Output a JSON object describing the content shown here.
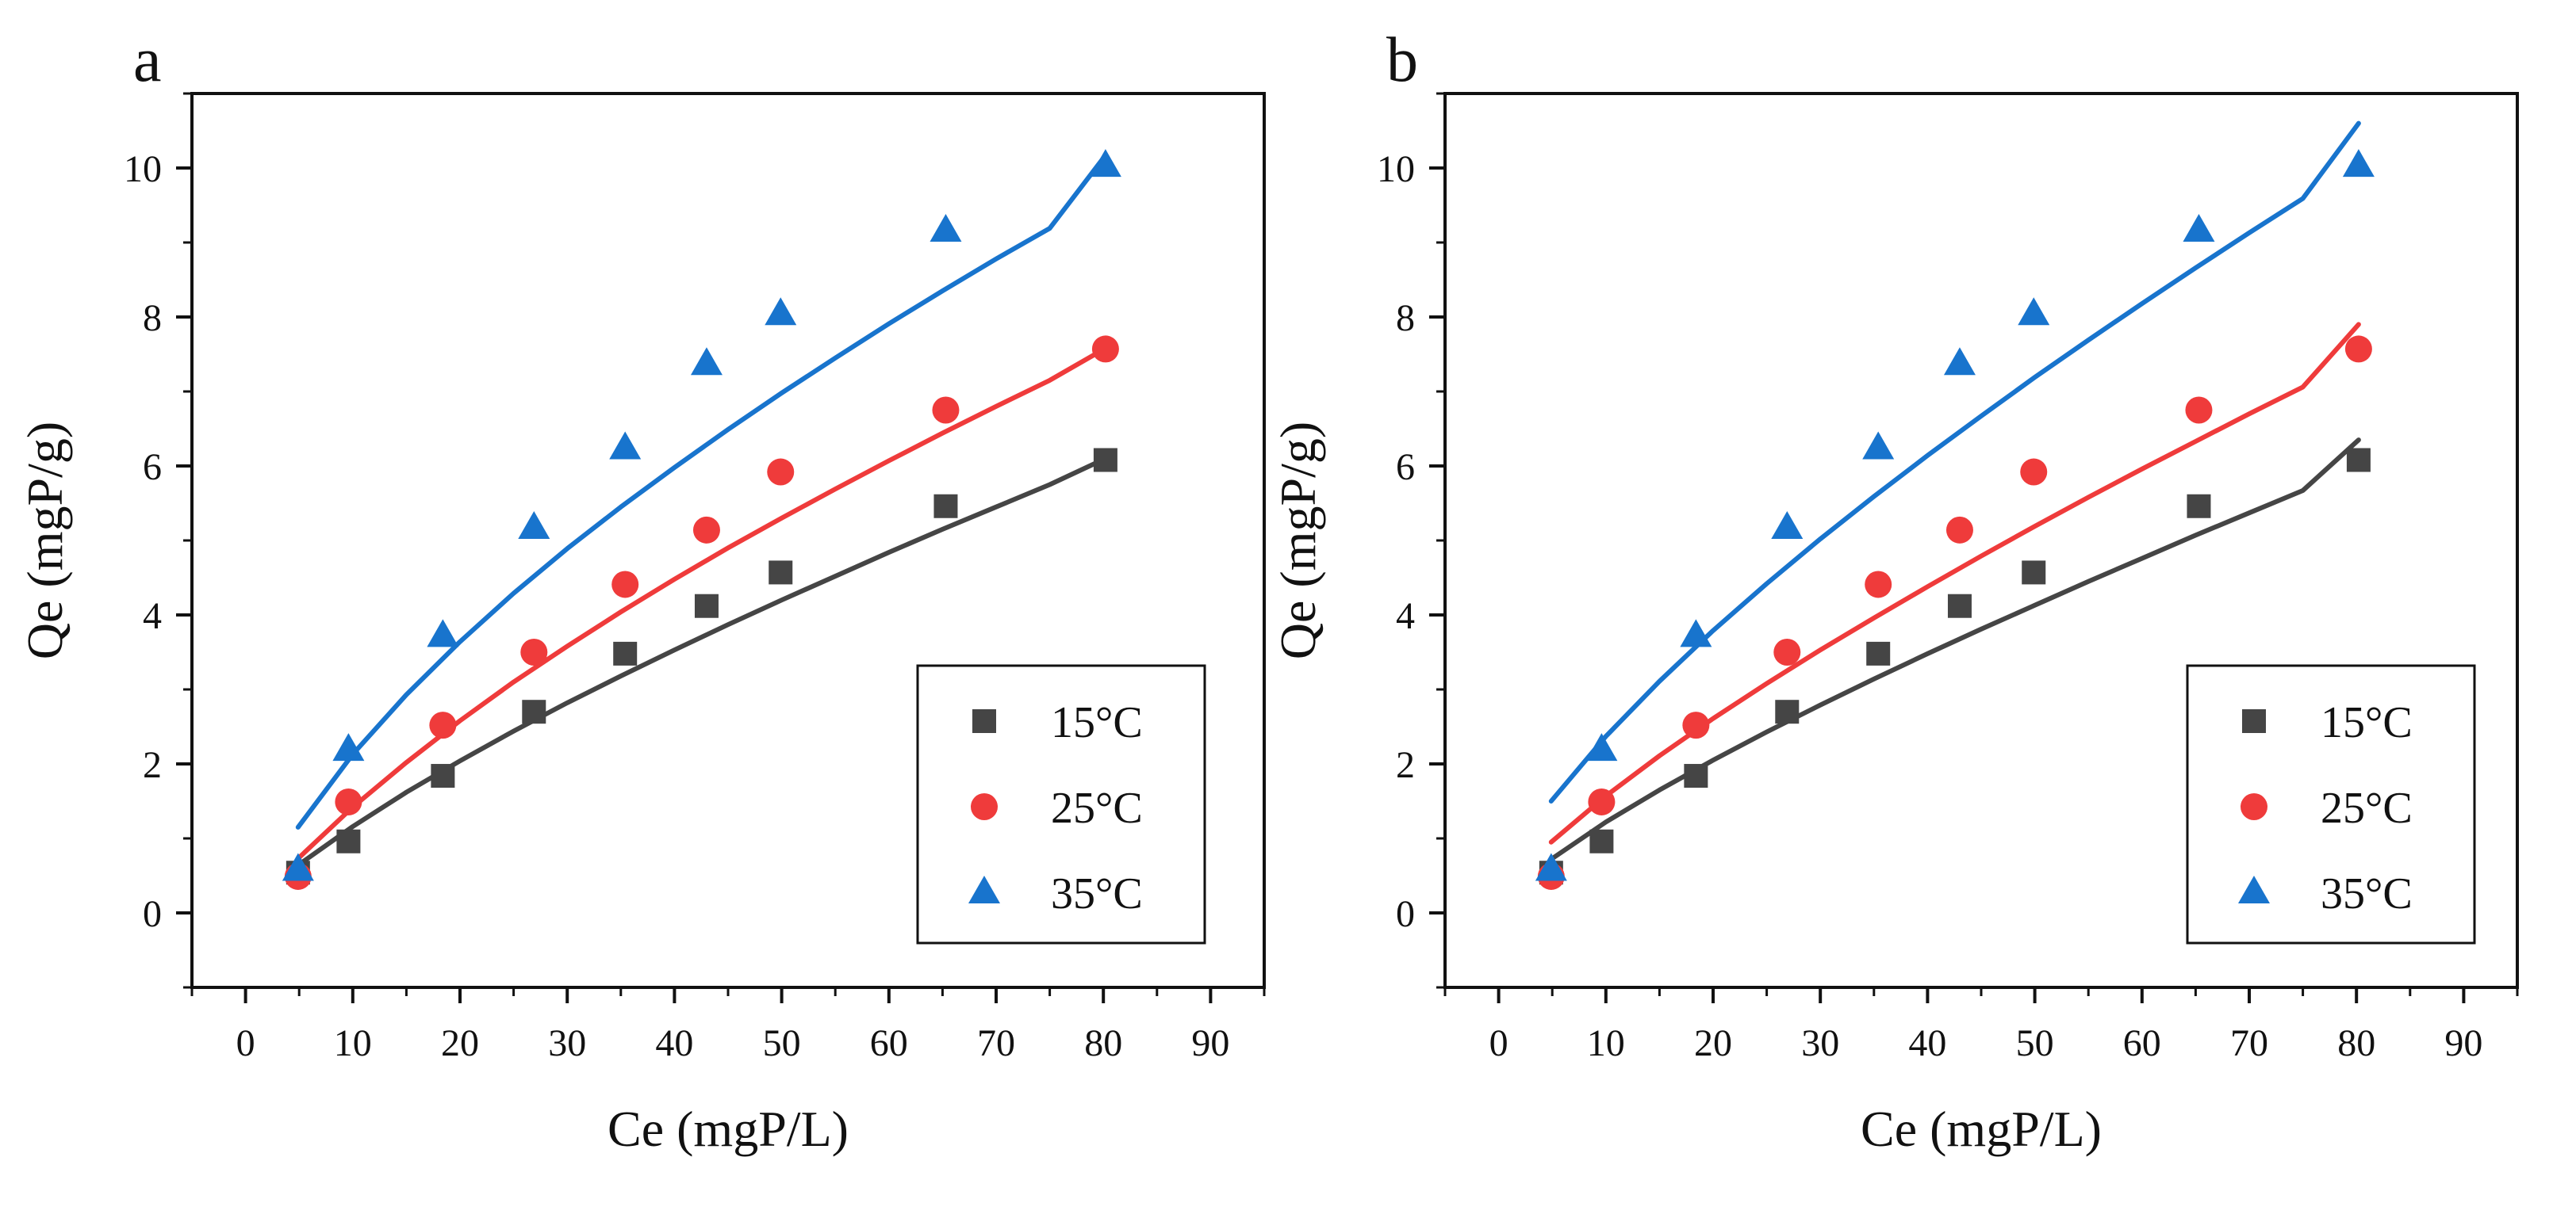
{
  "colors": {
    "15C": "#454545",
    "25C": "#ef3b3b",
    "35C": "#1874cd",
    "axis": "#111111"
  },
  "chart_data": [
    {
      "type": "scatter",
      "panel_label": "a",
      "xlabel": "Ce (mgP/L)",
      "ylabel": "Qe (mgP/g)",
      "xlim": [
        -5,
        95
      ],
      "ylim": [
        -1,
        11
      ],
      "xticks": [
        0,
        10,
        20,
        30,
        40,
        50,
        60,
        70,
        80,
        90
      ],
      "yticks": [
        0,
        2,
        4,
        6,
        8,
        10
      ],
      "legend_position": "bottom-right",
      "series": [
        {
          "name": "15°C",
          "marker": "square",
          "color": "#454545",
          "x": [
            4.9,
            9.6,
            18.4,
            26.9,
            35.4,
            43.0,
            49.9,
            65.3,
            80.2
          ],
          "y": [
            0.54,
            0.96,
            1.84,
            2.7,
            3.48,
            4.12,
            4.57,
            5.46,
            6.08
          ],
          "fit_x": [
            4.9,
            10,
            15,
            20,
            25,
            30,
            35,
            40,
            45,
            50,
            55,
            60,
            65,
            70,
            75,
            80.2
          ],
          "fit_y": [
            0.64,
            1.16,
            1.62,
            2.04,
            2.44,
            2.82,
            3.18,
            3.53,
            3.87,
            4.2,
            4.52,
            4.84,
            5.15,
            5.45,
            5.75,
            6.1
          ]
        },
        {
          "name": "25°C",
          "marker": "circle",
          "color": "#ef3b3b",
          "x": [
            4.9,
            9.6,
            18.4,
            26.9,
            35.4,
            43.0,
            49.9,
            65.3,
            80.2
          ],
          "y": [
            0.49,
            1.49,
            2.52,
            3.5,
            4.41,
            5.14,
            5.92,
            6.75,
            7.57
          ],
          "fit_x": [
            4.9,
            10,
            15,
            20,
            25,
            30,
            35,
            40,
            45,
            50,
            55,
            60,
            65,
            70,
            75,
            80.2
          ],
          "fit_y": [
            0.73,
            1.42,
            2.02,
            2.58,
            3.1,
            3.58,
            4.04,
            4.48,
            4.9,
            5.3,
            5.69,
            6.07,
            6.44,
            6.8,
            7.15,
            7.58
          ]
        },
        {
          "name": "35°C",
          "marker": "triangle",
          "color": "#1874cd",
          "x": [
            4.9,
            9.6,
            18.4,
            26.9,
            35.4,
            43.0,
            49.9,
            65.3,
            80.2
          ],
          "y": [
            0.58,
            2.19,
            3.72,
            5.17,
            6.24,
            7.37,
            8.04,
            9.16,
            10.03
          ],
          "fit_x": [
            4.9,
            10,
            15,
            20,
            25,
            30,
            35,
            40,
            45,
            50,
            55,
            60,
            65,
            70,
            75,
            80.2
          ],
          "fit_y": [
            1.15,
            2.13,
            2.93,
            3.64,
            4.29,
            4.89,
            5.45,
            5.98,
            6.49,
            6.98,
            7.45,
            7.91,
            8.35,
            8.78,
            9.19,
            10.17
          ]
        }
      ]
    },
    {
      "type": "scatter",
      "panel_label": "b",
      "xlabel": "Ce (mgP/L)",
      "ylabel": "Qe (mgP/g)",
      "xlim": [
        -5,
        95
      ],
      "ylim": [
        -1,
        11
      ],
      "xticks": [
        0,
        10,
        20,
        30,
        40,
        50,
        60,
        70,
        80,
        90
      ],
      "yticks": [
        0,
        2,
        4,
        6,
        8,
        10
      ],
      "legend_position": "bottom-right",
      "series": [
        {
          "name": "15°C",
          "marker": "square",
          "color": "#454545",
          "x": [
            4.9,
            9.6,
            18.4,
            26.9,
            35.4,
            43.0,
            49.9,
            65.3,
            80.2
          ],
          "y": [
            0.54,
            0.96,
            1.84,
            2.7,
            3.48,
            4.12,
            4.57,
            5.46,
            6.08
          ],
          "fit_x": [
            4.9,
            10,
            15,
            20,
            25,
            30,
            35,
            40,
            45,
            50,
            55,
            60,
            65,
            70,
            75,
            80.2
          ],
          "fit_y": [
            0.72,
            1.22,
            1.65,
            2.05,
            2.43,
            2.79,
            3.14,
            3.48,
            3.81,
            4.13,
            4.45,
            4.76,
            5.07,
            5.37,
            5.67,
            6.35
          ]
        },
        {
          "name": "25°C",
          "marker": "circle",
          "color": "#ef3b3b",
          "x": [
            4.9,
            9.6,
            18.4,
            26.9,
            35.4,
            43.0,
            49.9,
            65.3,
            80.2
          ],
          "y": [
            0.49,
            1.49,
            2.52,
            3.5,
            4.41,
            5.14,
            5.92,
            6.75,
            7.57
          ],
          "fit_x": [
            4.9,
            10,
            15,
            20,
            25,
            30,
            35,
            40,
            45,
            50,
            55,
            60,
            65,
            70,
            75,
            80.2
          ],
          "fit_y": [
            0.95,
            1.57,
            2.11,
            2.61,
            3.08,
            3.53,
            3.96,
            4.38,
            4.79,
            5.19,
            5.58,
            5.96,
            6.33,
            6.7,
            7.06,
            7.9
          ]
        },
        {
          "name": "35°C",
          "marker": "triangle",
          "color": "#1874cd",
          "x": [
            4.9,
            9.6,
            18.4,
            26.9,
            35.4,
            43.0,
            49.9,
            65.3,
            80.2
          ],
          "y": [
            0.58,
            2.19,
            3.72,
            5.17,
            6.24,
            7.37,
            8.04,
            9.16,
            10.03
          ],
          "fit_x": [
            4.9,
            10,
            15,
            20,
            25,
            30,
            35,
            40,
            45,
            50,
            55,
            60,
            65,
            70,
            75,
            80.2
          ],
          "fit_y": [
            1.5,
            2.37,
            3.11,
            3.79,
            4.42,
            5.02,
            5.59,
            6.14,
            6.67,
            7.19,
            7.69,
            8.18,
            8.66,
            9.13,
            9.59,
            10.6
          ]
        }
      ]
    }
  ]
}
